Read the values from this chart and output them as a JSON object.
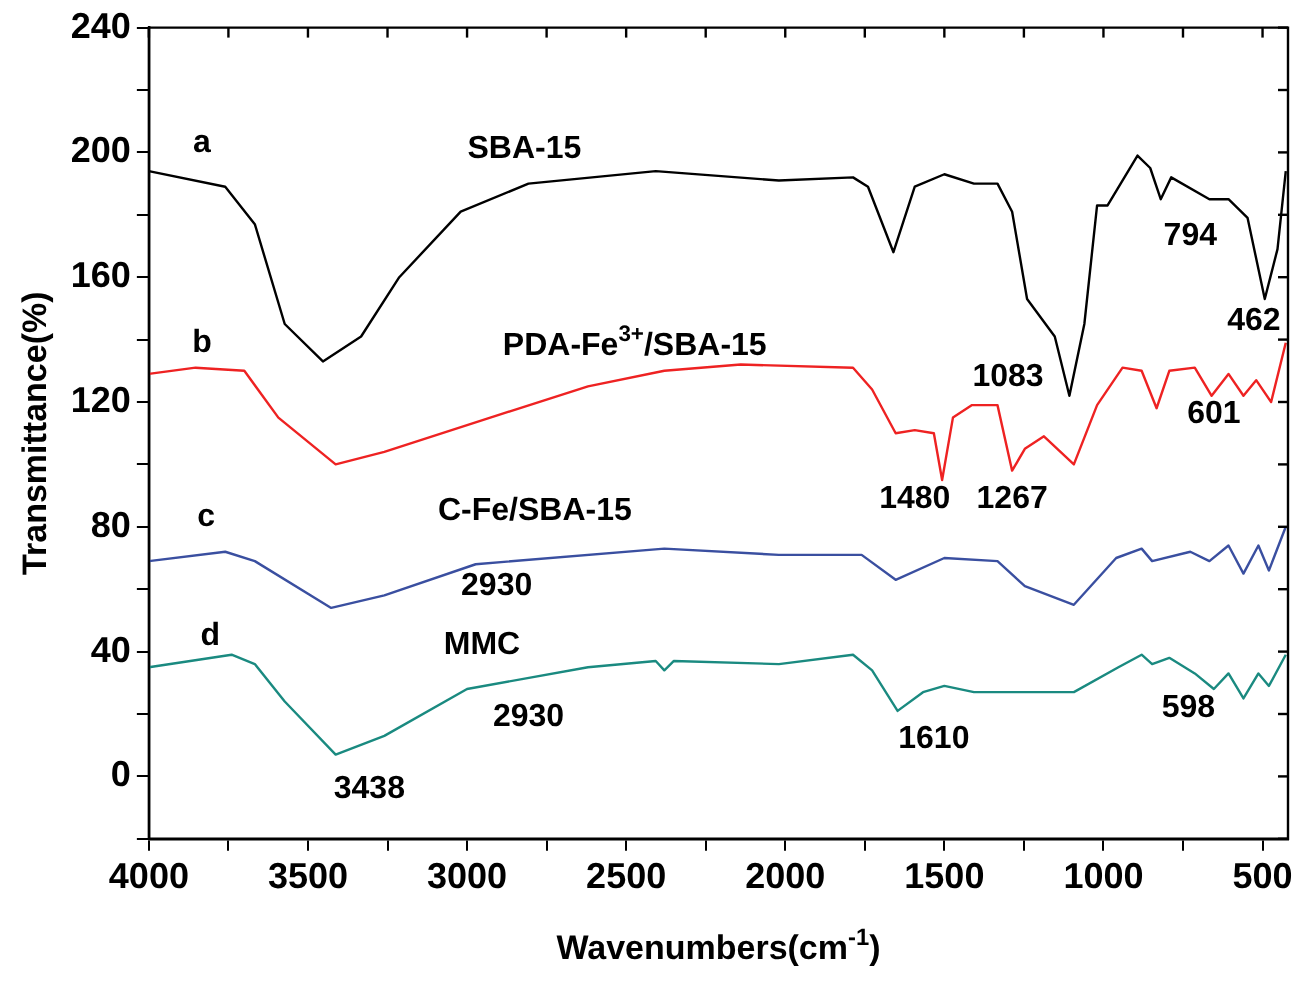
{
  "chart_data": {
    "type": "line",
    "xlabel": "Wavenumbers(cm$^{-1}$)",
    "ylabel": "Transmittance(%)",
    "xlim": [
      4000,
      420
    ],
    "xticks": [
      4000,
      {
        "value": 3750,
        "label": null
      },
      3500,
      {
        "value": 3250,
        "label": null
      },
      3000,
      {
        "value": 2750,
        "label": null
      },
      2500,
      {
        "value": 2250,
        "label": null
      },
      2000,
      {
        "value": 1750,
        "label": null
      },
      1500,
      {
        "value": 1250,
        "label": null
      },
      1000,
      {
        "value": 750,
        "label": null
      },
      500
    ],
    "ylim": [
      -20,
      240
    ],
    "yticks": [
      {
        "value": -20,
        "label": null
      },
      0,
      {
        "value": 20,
        "label": null
      },
      40,
      {
        "value": 60,
        "label": null
      },
      80,
      {
        "value": 100,
        "label": null
      },
      120,
      {
        "value": 140,
        "label": null
      },
      160,
      {
        "value": 180,
        "label": null
      },
      200,
      {
        "value": 220,
        "label": null
      },
      240
    ],
    "grid": false,
    "legend": false,
    "marker": "none",
    "line_style": "solid",
    "series": [
      {
        "name": "SBA-15",
        "color": "#000000",
        "x": [
          4000,
          3760,
          3667,
          3573,
          3453,
          3333,
          3213,
          3020,
          2807,
          2407,
          2020,
          1787,
          1740,
          1660,
          1593,
          1500,
          1407,
          1333,
          1287,
          1240,
          1153,
          1107,
          1060,
          1020,
          987,
          893,
          853,
          820,
          787,
          667,
          607,
          547,
          493,
          453,
          427
        ],
        "values": [
          194,
          189,
          177,
          145,
          133,
          141,
          160,
          181,
          190,
          194,
          191,
          192,
          189,
          168,
          189,
          193,
          190,
          190,
          181,
          153,
          141,
          122,
          145,
          183,
          183,
          199,
          195,
          185,
          192,
          185,
          185,
          179,
          153,
          169,
          194
        ]
      },
      {
        "name": "PDA-Fe$^{3+}$/SBA-15",
        "color": "#ee2222",
        "x": [
          4000,
          3853,
          3700,
          3593,
          3413,
          3260,
          2927,
          2620,
          2380,
          2140,
          1787,
          1727,
          1653,
          1593,
          1533,
          1507,
          1473,
          1413,
          1333,
          1287,
          1247,
          1187,
          1093,
          1020,
          940,
          880,
          833,
          793,
          713,
          660,
          607,
          560,
          520,
          473,
          427
        ],
        "values": [
          129,
          131,
          130,
          115,
          100,
          104,
          115,
          125,
          130,
          132,
          131,
          124,
          110,
          111,
          110,
          95,
          115,
          119,
          119,
          98,
          105,
          109,
          100,
          119,
          131,
          130,
          118,
          130,
          131,
          122,
          129,
          122,
          127,
          120,
          139
        ]
      },
      {
        "name": "C-Fe/SBA-15",
        "color": "#3a4fa0",
        "x": [
          4000,
          3760,
          3667,
          3427,
          3260,
          2973,
          2380,
          2020,
          1760,
          1653,
          1500,
          1333,
          1247,
          1093,
          960,
          880,
          847,
          727,
          667,
          607,
          560,
          513,
          480,
          427
        ],
        "values": [
          69,
          72,
          69,
          54,
          58,
          68,
          73,
          71,
          71,
          63,
          70,
          69,
          61,
          55,
          70,
          73,
          69,
          72,
          69,
          74,
          65,
          74,
          66,
          80
        ]
      },
      {
        "name": "MMC",
        "color": "#1a8a80",
        "x": [
          4000,
          3740,
          3667,
          3573,
          3413,
          3260,
          3000,
          2620,
          2407,
          2380,
          2350,
          2020,
          1787,
          1727,
          1647,
          1567,
          1500,
          1407,
          1093,
          953,
          880,
          847,
          793,
          713,
          653,
          607,
          560,
          513,
          480,
          427
        ],
        "values": [
          35,
          39,
          36,
          24,
          7,
          13,
          28,
          35,
          37,
          34,
          37,
          36,
          39,
          34,
          21,
          27,
          29,
          27,
          27,
          35,
          39,
          36,
          38,
          33,
          28,
          33,
          25,
          33,
          29,
          39
        ]
      }
    ],
    "annotations": [
      "a",
      "b",
      "c",
      "d",
      "794",
      "462",
      "1083",
      "601",
      "1480",
      "1267",
      "2930",
      "2930",
      "3438",
      "1610",
      "598"
    ]
  }
}
